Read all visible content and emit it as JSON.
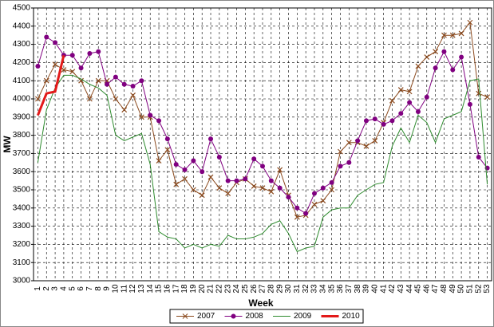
{
  "chart_data": {
    "type": "line",
    "x_label": "Week",
    "y_label": "MW",
    "categories": [
      "1",
      "2",
      "3",
      "4",
      "5",
      "6",
      "7",
      "8",
      "9",
      "10",
      "11",
      "12",
      "13",
      "14",
      "15",
      "16",
      "17",
      "18",
      "19",
      "20",
      "21",
      "22",
      "23",
      "24",
      "25",
      "26",
      "27",
      "28",
      "29",
      "30",
      "31",
      "32",
      "33",
      "34",
      "35",
      "36",
      "37",
      "38",
      "39",
      "40",
      "41",
      "42",
      "43",
      "44",
      "45",
      "46",
      "47",
      "48",
      "49",
      "50",
      "51",
      "52",
      "53"
    ],
    "ylim": [
      3000,
      4500
    ],
    "yticks": [
      3000,
      3100,
      3200,
      3300,
      3400,
      3500,
      3600,
      3700,
      3800,
      3900,
      4000,
      4100,
      4200,
      4300,
      4400,
      4500
    ],
    "grid": true,
    "legend": "bottom",
    "series": [
      {
        "name": "2007",
        "color": "#8b4a1e",
        "marker": "x",
        "width": 1,
        "values": [
          4000,
          4100,
          4190,
          4160,
          4150,
          4100,
          4000,
          4100,
          4100,
          4000,
          3940,
          4020,
          3900,
          3900,
          3660,
          3720,
          3530,
          3560,
          3500,
          3470,
          3570,
          3510,
          3480,
          3540,
          3560,
          3520,
          3510,
          3490,
          3610,
          3470,
          3350,
          3360,
          3420,
          3440,
          3500,
          3710,
          3760,
          3760,
          3740,
          3770,
          3870,
          3990,
          4050,
          4040,
          4180,
          4230,
          4260,
          4350,
          4350,
          4360,
          4420,
          4030,
          4010
        ]
      },
      {
        "name": "2008",
        "color": "#800080",
        "marker": "circle",
        "width": 1,
        "values": [
          4180,
          4340,
          4310,
          4240,
          4240,
          4170,
          4250,
          4260,
          4080,
          4120,
          4080,
          4070,
          4100,
          3910,
          3880,
          3780,
          3640,
          3610,
          3660,
          3600,
          3780,
          3680,
          3550,
          3550,
          3560,
          3670,
          3630,
          3550,
          3510,
          3460,
          3400,
          3370,
          3480,
          3510,
          3540,
          3630,
          3650,
          3770,
          3880,
          3890,
          3860,
          3880,
          3920,
          3980,
          3930,
          4010,
          4170,
          4260,
          4160,
          4230,
          3970,
          3680,
          3620
        ]
      },
      {
        "name": "2009",
        "color": "#2e8b2e",
        "marker": null,
        "width": 1,
        "values": [
          3650,
          3940,
          4060,
          4130,
          4130,
          4110,
          4080,
          4060,
          4020,
          3800,
          3770,
          3790,
          3810,
          3640,
          3270,
          3240,
          3230,
          3180,
          3200,
          3180,
          3200,
          3190,
          3250,
          3230,
          3230,
          3240,
          3260,
          3310,
          3330,
          3260,
          3160,
          3180,
          3190,
          3350,
          3390,
          3400,
          3400,
          3470,
          3500,
          3530,
          3540,
          3740,
          3840,
          3760,
          3910,
          3870,
          3760,
          3890,
          3910,
          3930,
          4100,
          4110,
          3530
        ]
      },
      {
        "name": "2010",
        "color": "#e31a1a",
        "marker": null,
        "width": 3,
        "values": [
          3910,
          4030,
          4040,
          4240,
          null,
          null,
          null,
          null,
          null,
          null,
          null,
          null,
          null,
          null,
          null,
          null,
          null,
          null,
          null,
          null,
          null,
          null,
          null,
          null,
          null,
          null,
          null,
          null,
          null,
          null,
          null,
          null,
          null,
          null,
          null,
          null,
          null,
          null,
          null,
          null,
          null,
          null,
          null,
          null,
          null,
          null,
          null,
          null,
          null,
          null,
          null,
          null,
          null
        ]
      }
    ]
  }
}
